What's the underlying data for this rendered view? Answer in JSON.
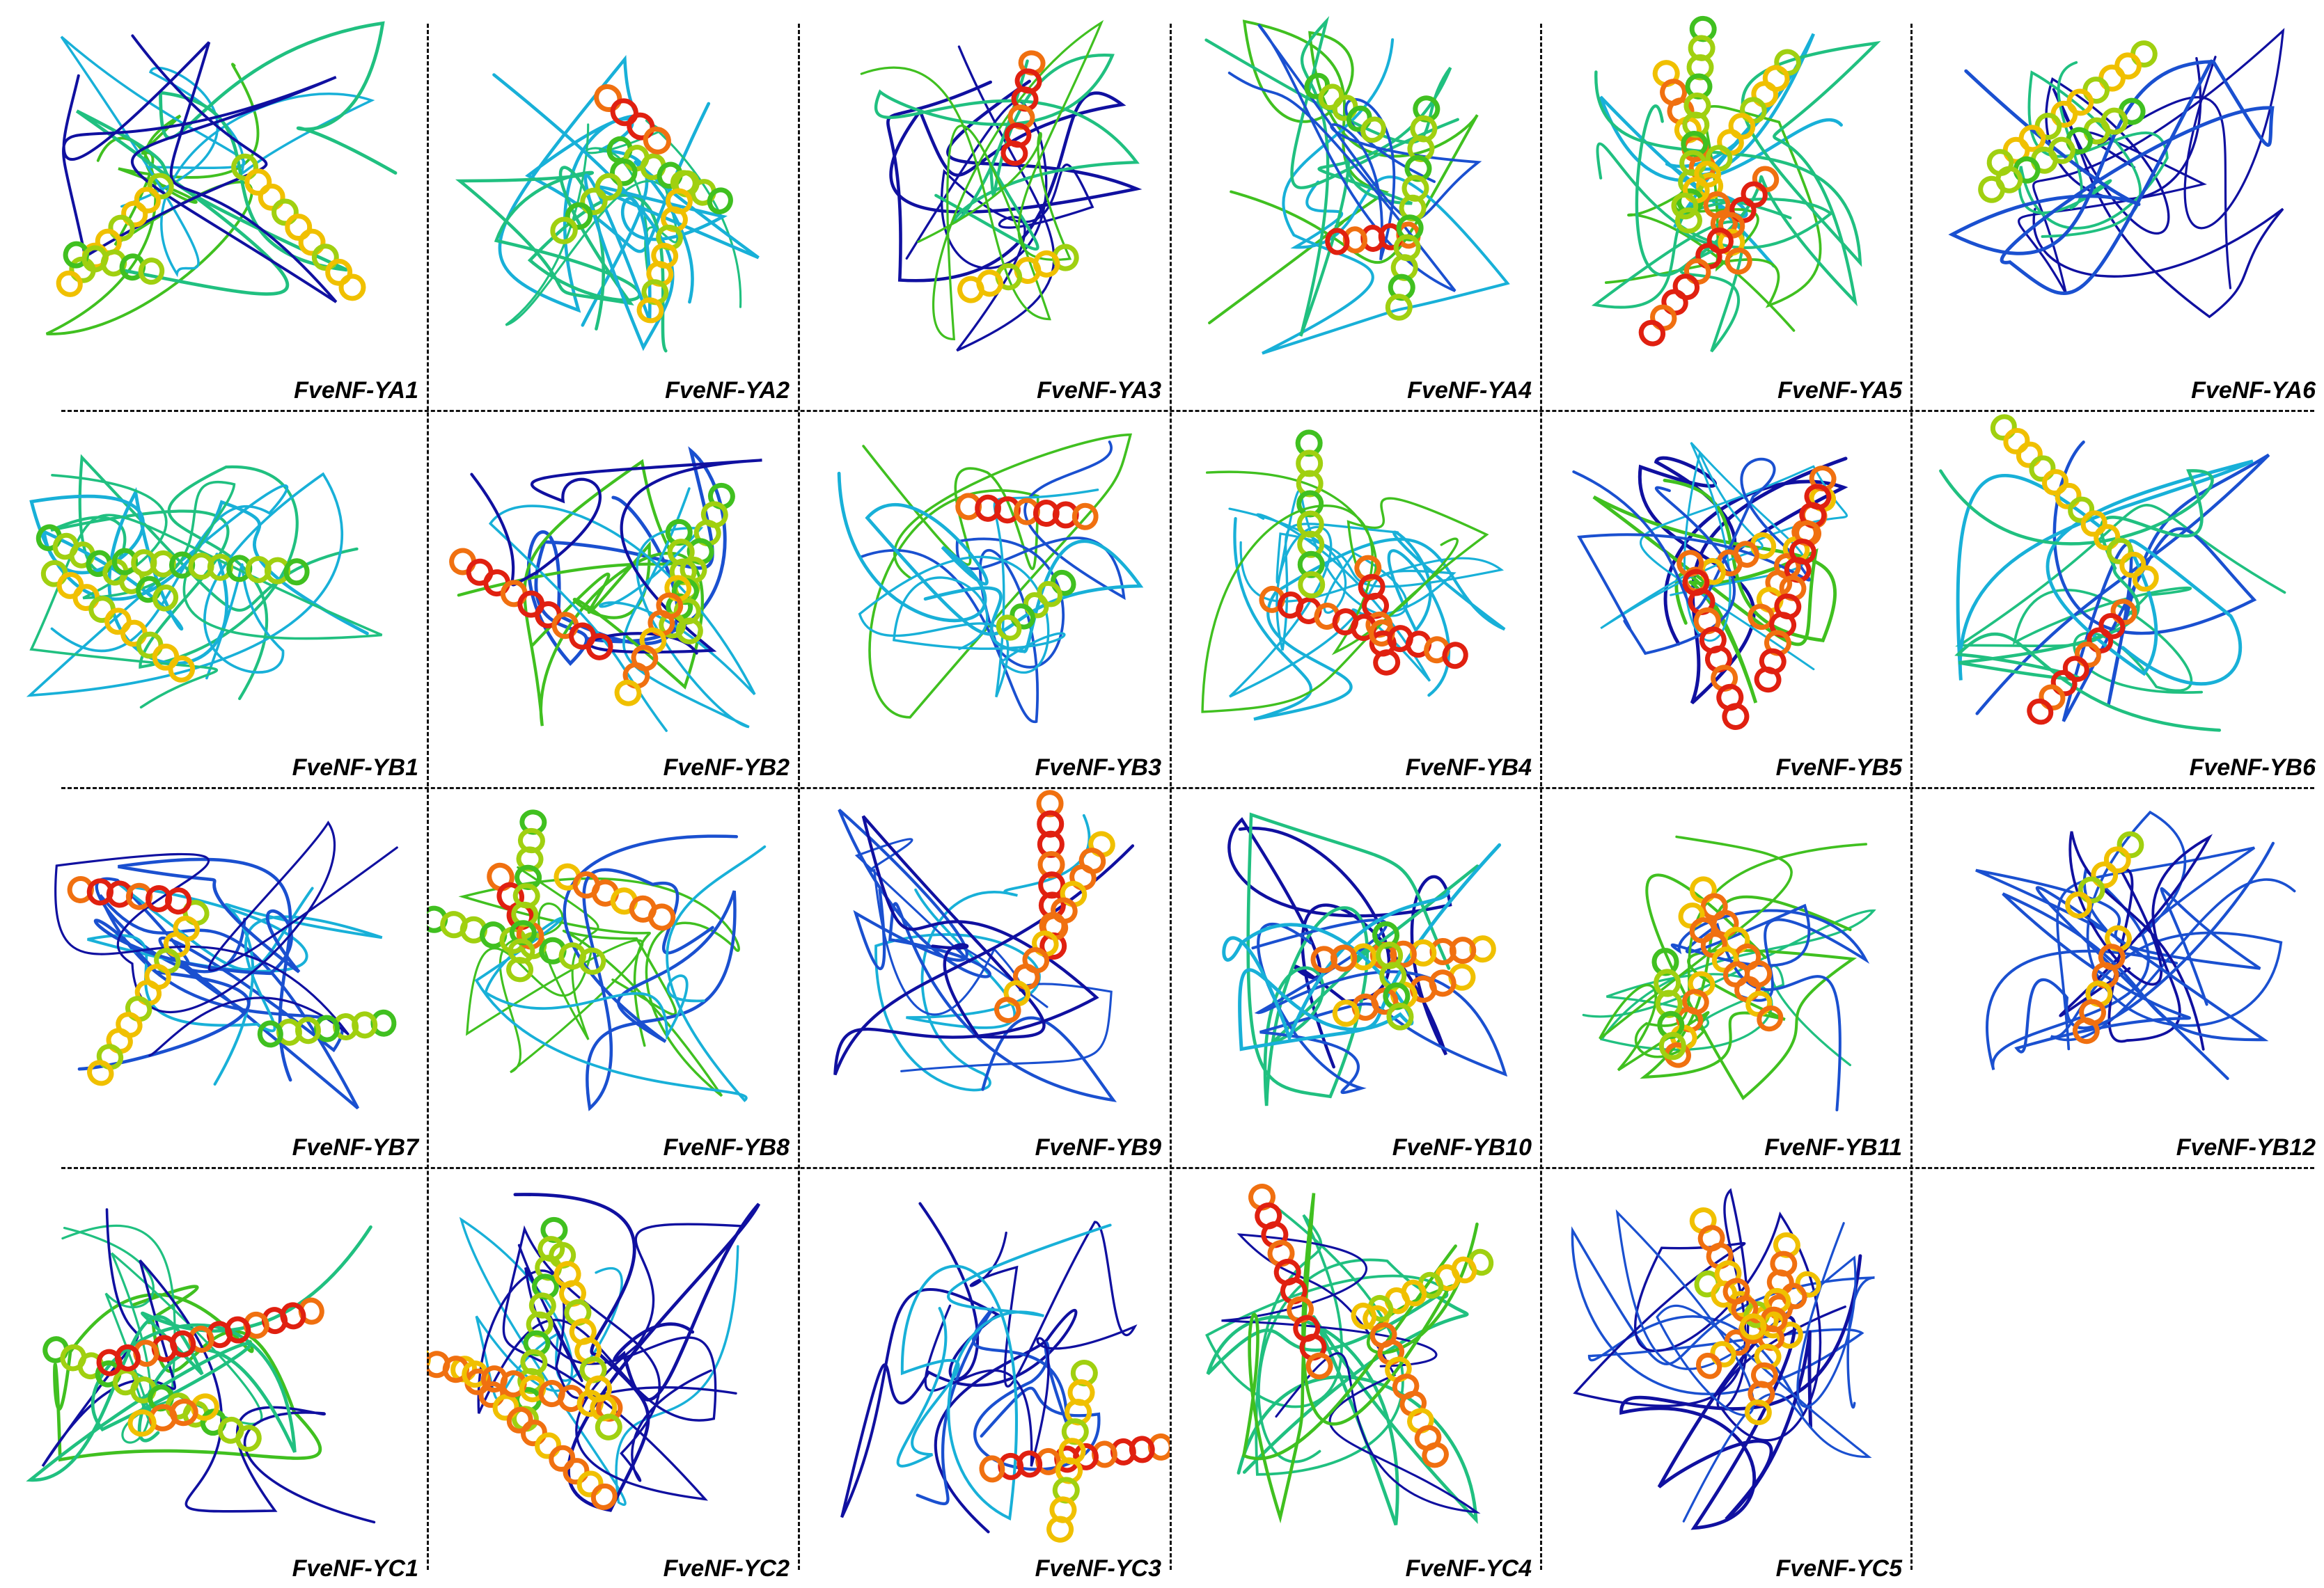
{
  "figure": {
    "panels": [
      {
        "label": "FveNF-YA1"
      },
      {
        "label": "FveNF-YA2"
      },
      {
        "label": "FveNF-YA3"
      },
      {
        "label": "FveNF-YA4"
      },
      {
        "label": "FveNF-YA5"
      },
      {
        "label": "FveNF-YA6"
      },
      {
        "label": "FveNF-YB1"
      },
      {
        "label": "FveNF-YB2"
      },
      {
        "label": "FveNF-YB3"
      },
      {
        "label": "FveNF-YB4"
      },
      {
        "label": "FveNF-YB5"
      },
      {
        "label": "FveNF-YB6"
      },
      {
        "label": "FveNF-YB7"
      },
      {
        "label": "FveNF-YB8"
      },
      {
        "label": "FveNF-YB9"
      },
      {
        "label": "FveNF-YB10"
      },
      {
        "label": "FveNF-YB11"
      },
      {
        "label": "FveNF-YB12"
      },
      {
        "label": "FveNF-YC1"
      },
      {
        "label": "FveNF-YC2"
      },
      {
        "label": "FveNF-YC3"
      },
      {
        "label": "FveNF-YC4"
      },
      {
        "label": "FveNF-YC5"
      },
      {
        "label": ""
      }
    ],
    "color_scale": [
      "#1010a0",
      "#1a50d0",
      "#18b0d8",
      "#20c080",
      "#40c020",
      "#a0d010",
      "#f0c000",
      "#f07010",
      "#e02010"
    ]
  }
}
